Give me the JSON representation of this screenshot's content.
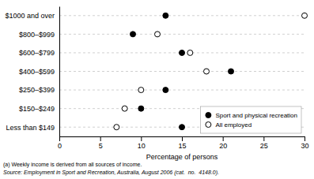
{
  "chart_data": {
    "type": "dot",
    "orientation": "horizontal",
    "categories": [
      "$1000 and over",
      "$800–$999",
      "$600–$799",
      "$400–$599",
      "$250–$399",
      "$150–$249",
      "Less than $149"
    ],
    "series": [
      {
        "name": "Sport and physical recreation",
        "color": "black",
        "marker": "circle",
        "values": [
          13,
          9,
          15,
          21,
          13,
          10,
          15
        ]
      },
      {
        "name": "All employed",
        "color": "black",
        "marker": "open-circle",
        "values": [
          30,
          12,
          16,
          18,
          10,
          8,
          7
        ]
      }
    ],
    "xlabel": "Percentage of persons",
    "xlim": [
      0,
      30
    ],
    "xticks": [
      0,
      5,
      10,
      15,
      20,
      25,
      30
    ],
    "grid": true,
    "legend": "lower right",
    "annotations": [
      "(a) Weekly income is derived from all sources of income.",
      "Source: Employment in Sport and Recreation, Australia, August 2006 (cat.  no.  4148.0)."
    ]
  }
}
